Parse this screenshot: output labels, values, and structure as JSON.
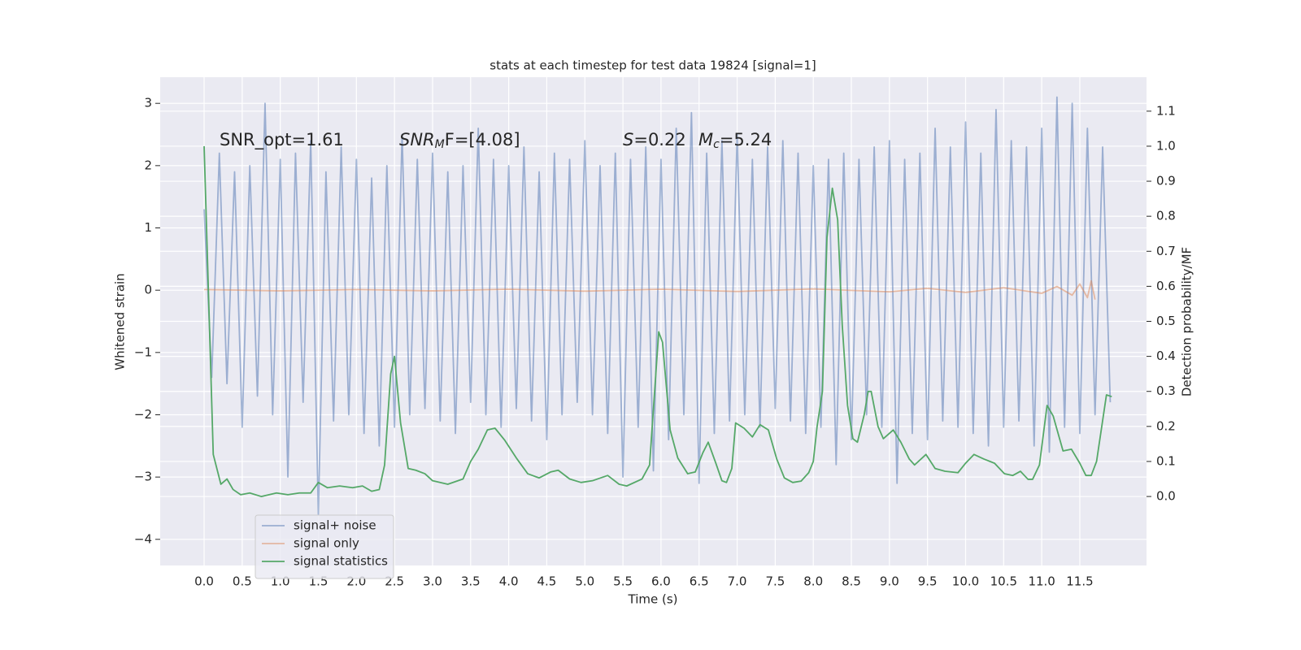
{
  "chart_data": {
    "type": "line",
    "title": "stats at each timestep for test data 19824 [signal=1]",
    "xlabel": "Time (s)",
    "ylabel": "Whitened strain",
    "y2label": "Detection probability/MF",
    "annotations": [
      [
        "SNR_opt=1.61"
      ],
      [
        "SNR",
        "M",
        "F=[4.08]"
      ],
      [
        "S",
        "=0.22"
      ],
      [
        "M",
        "c",
        "=5.24"
      ]
    ],
    "grid": true,
    "background": "#eaeaf2",
    "legend": "lower left",
    "xlim": [
      -0.577,
      12.376
    ],
    "ylim": [
      -4.42,
      3.42
    ],
    "y2lim": [
      -0.197,
      1.197
    ],
    "xticks": [
      {
        "value": 0,
        "label": "0.0"
      },
      0.5,
      {
        "value": 1,
        "label": "1.0"
      },
      1.5,
      {
        "value": 2,
        "label": "2.0"
      },
      2.5,
      {
        "value": 3,
        "label": "3.0"
      },
      3.5,
      {
        "value": 4,
        "label": "4.0"
      },
      4.5,
      {
        "value": 5,
        "label": "5.0"
      },
      5.5,
      {
        "value": 6,
        "label": "6.0"
      },
      6.5,
      {
        "value": 7,
        "label": "7.0"
      },
      7.5,
      {
        "value": 8,
        "label": "8.0"
      },
      8.5,
      {
        "value": 9,
        "label": "9.0"
      },
      9.5,
      {
        "value": 10,
        "label": "10.0"
      },
      10.5,
      {
        "value": 11,
        "label": "11.0"
      },
      11.5
    ],
    "yticks": [
      {
        "value": -4,
        "label": "−4"
      },
      {
        "value": -3,
        "label": "−3"
      },
      {
        "value": -2,
        "label": "−2"
      },
      {
        "value": -1,
        "label": "−1"
      },
      0,
      1,
      2,
      3
    ],
    "y2ticks": [
      {
        "value": 0,
        "label": "0.0"
      },
      0.1,
      0.2,
      0.3,
      0.4,
      0.5,
      0.6,
      0.7,
      0.8,
      0.9,
      {
        "value": 1,
        "label": "1.0"
      },
      1.1
    ],
    "series": [
      {
        "name": "signal+ noise",
        "color": "#4c72b0",
        "alpha": 0.5,
        "x": [
          0,
          0.1,
          0.2,
          0.3,
          0.4,
          0.5,
          0.6,
          0.7,
          0.8,
          0.9,
          1,
          1.1,
          1.2,
          1.3,
          1.4,
          1.5,
          1.6,
          1.7,
          1.8,
          1.9,
          2,
          2.1,
          2.2,
          2.3,
          2.4,
          2.5,
          2.6,
          2.7,
          2.8,
          2.9,
          3,
          3.1,
          3.2,
          3.3,
          3.4,
          3.5,
          3.6,
          3.7,
          3.8,
          3.9,
          4,
          4.1,
          4.2,
          4.3,
          4.4,
          4.5,
          4.6,
          4.7,
          4.8,
          4.9,
          5,
          5.1,
          5.2,
          5.3,
          5.4,
          5.5,
          5.6,
          5.7,
          5.8,
          5.9,
          6,
          6.1,
          6.2,
          6.3,
          6.4,
          6.5,
          6.6,
          6.7,
          6.8,
          6.9,
          7,
          7.1,
          7.2,
          7.3,
          7.4,
          7.5,
          7.6,
          7.7,
          7.8,
          7.9,
          8,
          8.1,
          8.2,
          8.3,
          8.4,
          8.5,
          8.6,
          8.7,
          8.8,
          8.9,
          9,
          9.1,
          9.2,
          9.3,
          9.4,
          9.5,
          9.6,
          9.7,
          9.8,
          9.9,
          10,
          10.1,
          10.2,
          10.3,
          10.4,
          10.5,
          10.6,
          10.7,
          10.8,
          10.9,
          11,
          11.1,
          11.2,
          11.3,
          11.4,
          11.5,
          11.6,
          11.7,
          11.8,
          11.9
        ],
        "values": [
          1.3,
          -1.4,
          2.2,
          -1.5,
          1.9,
          -2.2,
          2.0,
          -1.7,
          3.0,
          -2.0,
          2.1,
          -3.0,
          2.2,
          -1.8,
          2.4,
          -3.6,
          1.9,
          -2.1,
          2.3,
          -2.0,
          2.1,
          -2.3,
          1.8,
          -2.5,
          2.0,
          -2.2,
          2.5,
          -2.0,
          2.1,
          -1.9,
          2.2,
          -2.1,
          1.9,
          -2.3,
          2.0,
          -1.8,
          2.6,
          -2.0,
          2.1,
          -2.2,
          2.0,
          -1.9,
          2.3,
          -2.1,
          1.9,
          -2.4,
          2.2,
          -2.0,
          2.1,
          -1.8,
          2.4,
          -2.0,
          2.0,
          -2.3,
          2.2,
          -3.0,
          2.1,
          -2.2,
          2.3,
          -2.9,
          2.1,
          -2.4,
          2.6,
          -2.0,
          2.85,
          -3.1,
          2.2,
          -2.3,
          2.4,
          -2.1,
          2.5,
          -2.0,
          2.1,
          -2.2,
          2.3,
          -1.9,
          2.4,
          -2.1,
          2.2,
          -2.3,
          2.0,
          -2.2,
          2.1,
          -2.8,
          2.2,
          -2.4,
          2.1,
          -2.0,
          2.3,
          -2.2,
          2.4,
          -3.1,
          2.1,
          -2.3,
          2.2,
          -2.4,
          2.6,
          -2.1,
          2.3,
          -2.2,
          2.7,
          -2.3,
          2.2,
          -2.5,
          2.9,
          -2.2,
          2.4,
          -2.1,
          2.3,
          -2.5,
          2.6,
          -2.6,
          3.1,
          -2.2,
          3.0,
          -2.3,
          2.6,
          -2.0,
          2.3,
          -1.8
        ]
      },
      {
        "name": "signal only",
        "color": "#dd8452",
        "alpha": 0.5,
        "x": [
          0,
          1,
          2,
          3,
          4,
          5,
          6,
          7,
          8,
          9,
          9.5,
          10,
          10.5,
          11,
          11.2,
          11.4,
          11.5,
          11.6,
          11.65,
          11.7
        ],
        "values": [
          0.01,
          -0.01,
          0.01,
          -0.01,
          0.015,
          -0.015,
          0.015,
          -0.02,
          0.02,
          -0.025,
          0.03,
          -0.035,
          0.04,
          -0.05,
          0.06,
          -0.08,
          0.1,
          -0.12,
          0.15,
          -0.15
        ]
      },
      {
        "name": "signal statistics",
        "color": "#55a868",
        "alpha": 1,
        "axis": "y2",
        "x": [
          0,
          0.12,
          0.22,
          0.3,
          0.38,
          0.48,
          0.6,
          0.75,
          0.95,
          1.1,
          1.25,
          1.4,
          1.5,
          1.62,
          1.78,
          1.95,
          2.08,
          2.2,
          2.3,
          2.37,
          2.45,
          2.5,
          2.58,
          2.68,
          2.78,
          2.9,
          3,
          3.2,
          3.4,
          3.5,
          3.6,
          3.72,
          3.82,
          3.95,
          4.1,
          4.25,
          4.4,
          4.55,
          4.65,
          4.8,
          4.95,
          5.1,
          5.3,
          5.45,
          5.55,
          5.75,
          5.85,
          5.97,
          6.02,
          6.12,
          6.22,
          6.35,
          6.45,
          6.55,
          6.62,
          6.72,
          6.8,
          6.86,
          6.93,
          6.98,
          7.09,
          7.2,
          7.3,
          7.41,
          7.52,
          7.62,
          7.73,
          7.84,
          7.94,
          8,
          8.05,
          8.12,
          8.18,
          8.25,
          8.32,
          8.38,
          8.45,
          8.52,
          8.58,
          8.67,
          8.72,
          8.76,
          8.85,
          8.92,
          9.05,
          9.15,
          9.26,
          9.33,
          9.48,
          9.6,
          9.73,
          9.9,
          10,
          10.11,
          10.24,
          10.38,
          10.51,
          10.62,
          10.72,
          10.82,
          10.88,
          10.97,
          11.07,
          11.15,
          11.28,
          11.39,
          11.5,
          11.58,
          11.65,
          11.72,
          11.85,
          11.92
        ],
        "values": [
          1.0,
          0.12,
          0.035,
          0.05,
          0.02,
          0.005,
          0.01,
          0.0,
          0.01,
          0.005,
          0.01,
          0.01,
          0.04,
          0.025,
          0.03,
          0.025,
          0.03,
          0.015,
          0.02,
          0.09,
          0.35,
          0.4,
          0.21,
          0.08,
          0.075,
          0.065,
          0.045,
          0.035,
          0.05,
          0.1,
          0.135,
          0.19,
          0.195,
          0.16,
          0.11,
          0.065,
          0.053,
          0.07,
          0.075,
          0.05,
          0.04,
          0.045,
          0.06,
          0.035,
          0.03,
          0.05,
          0.09,
          0.47,
          0.44,
          0.19,
          0.11,
          0.065,
          0.07,
          0.125,
          0.155,
          0.095,
          0.045,
          0.04,
          0.08,
          0.21,
          0.195,
          0.17,
          0.205,
          0.19,
          0.107,
          0.053,
          0.04,
          0.044,
          0.068,
          0.1,
          0.2,
          0.3,
          0.74,
          0.88,
          0.79,
          0.49,
          0.26,
          0.165,
          0.155,
          0.235,
          0.3,
          0.3,
          0.2,
          0.165,
          0.19,
          0.155,
          0.107,
          0.09,
          0.12,
          0.08,
          0.072,
          0.068,
          0.095,
          0.12,
          0.107,
          0.095,
          0.065,
          0.06,
          0.072,
          0.049,
          0.049,
          0.09,
          0.26,
          0.23,
          0.13,
          0.135,
          0.095,
          0.06,
          0.06,
          0.1,
          0.29,
          0.285
        ]
      }
    ]
  }
}
